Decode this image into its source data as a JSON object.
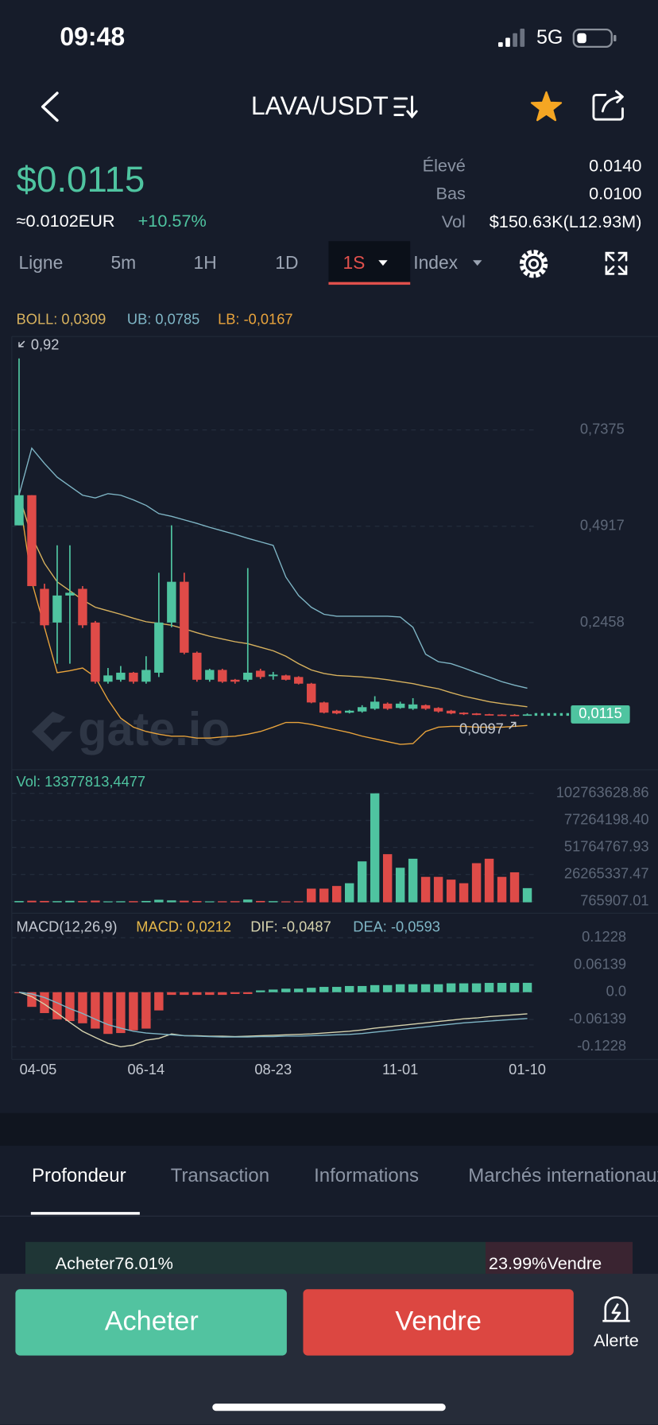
{
  "status_bar": {
    "time": "09:48",
    "network": "5G"
  },
  "header": {
    "pair": "LAVA/USDT"
  },
  "ticker": {
    "price": "$0.0115",
    "fiat": "≈0.0102EUR",
    "change": "+10.57%",
    "stats": [
      {
        "label": "Élevé",
        "value": "0.0140"
      },
      {
        "label": "Bas",
        "value": "0.0100"
      },
      {
        "label": "Vol",
        "value": "$150.63K(L12.93M)"
      }
    ]
  },
  "intervals": {
    "items": [
      "Ligne",
      "5m",
      "1H",
      "1D",
      "1S",
      "Index"
    ],
    "active": 4
  },
  "watermark": "gate.io",
  "chart_data": [
    {
      "type": "candlestick",
      "categories": [
        "04-05",
        null,
        null,
        null,
        null,
        null,
        null,
        null,
        null,
        null,
        "06-14",
        null,
        null,
        null,
        null,
        null,
        null,
        null,
        null,
        null,
        "08-23",
        null,
        null,
        null,
        null,
        null,
        null,
        null,
        null,
        null,
        "11-01",
        null,
        null,
        null,
        null,
        null,
        null,
        null,
        null,
        null,
        "01-10"
      ],
      "open": [
        0.494,
        0.571,
        0.332,
        0.246,
        0.315,
        0.332,
        0.246,
        0.095,
        0.1,
        0.118,
        0.095,
        0.118,
        0.246,
        0.35,
        0.169,
        0.1,
        0.125,
        0.1,
        0.1,
        0.123,
        0.109,
        0.111,
        0.107,
        0.09,
        0.042,
        0.021,
        0.016,
        0.019,
        0.026,
        0.039,
        0.028,
        0.026,
        0.035,
        0.028,
        0.021,
        0.016,
        0.014,
        0.012,
        0.011,
        0.0105,
        0.0104
      ],
      "high": [
        0.92,
        0.571,
        0.345,
        0.443,
        0.443,
        0.339,
        0.25,
        0.13,
        0.135,
        0.12,
        0.16,
        0.373,
        0.494,
        0.373,
        0.172,
        0.128,
        0.128,
        0.102,
        0.385,
        0.128,
        0.12,
        0.113,
        0.109,
        0.092,
        0.044,
        0.023,
        0.023,
        0.035,
        0.058,
        0.042,
        0.044,
        0.053,
        0.037,
        0.03,
        0.023,
        0.017,
        0.015,
        0.013,
        0.012,
        0.0125,
        0.014
      ],
      "low": [
        0.494,
        0.339,
        0.232,
        0.141,
        0.141,
        0.232,
        0.09,
        0.09,
        0.095,
        0.09,
        0.09,
        0.107,
        0.234,
        0.165,
        0.095,
        0.095,
        0.092,
        0.09,
        0.095,
        0.102,
        0.1,
        0.098,
        0.088,
        0.04,
        0.014,
        0.012,
        0.014,
        0.016,
        0.023,
        0.023,
        0.026,
        0.023,
        0.023,
        0.016,
        0.012,
        0.01,
        0.0097,
        0.0097,
        0.0097,
        0.0097,
        0.01
      ],
      "close": [
        0.571,
        0.339,
        0.239,
        0.315,
        0.322,
        0.239,
        0.095,
        0.111,
        0.118,
        0.095,
        0.125,
        0.246,
        0.35,
        0.169,
        0.1,
        0.125,
        0.095,
        0.095,
        0.118,
        0.107,
        0.113,
        0.1,
        0.09,
        0.042,
        0.016,
        0.014,
        0.021,
        0.03,
        0.044,
        0.026,
        0.039,
        0.037,
        0.026,
        0.019,
        0.014,
        0.012,
        0.01,
        0.01,
        0.0098,
        0.0104,
        0.0115
      ],
      "up_color": "#4fc4a0",
      "down_color": "#df4b48",
      "series": [
        {
          "name": "BOLL: 0,0309",
          "color": "#d8b25e",
          "values": [
            0.571,
            0.466,
            0.397,
            0.35,
            0.327,
            0.304,
            0.285,
            0.276,
            0.267,
            0.257,
            0.248,
            0.244,
            0.239,
            0.23,
            0.22,
            0.211,
            0.204,
            0.197,
            0.192,
            0.183,
            0.174,
            0.16,
            0.141,
            0.125,
            0.116,
            0.111,
            0.109,
            0.107,
            0.104,
            0.1,
            0.095,
            0.09,
            0.083,
            0.077,
            0.067,
            0.058,
            0.051,
            0.044,
            0.039,
            0.035,
            0.0309
          ]
        },
        {
          "name": "UB: 0,0785",
          "color": "#7fb6c6",
          "values": [
            0.571,
            0.691,
            0.652,
            0.617,
            0.594,
            0.571,
            0.564,
            0.575,
            0.571,
            0.559,
            0.545,
            0.524,
            0.517,
            0.508,
            0.499,
            0.489,
            0.48,
            0.471,
            0.461,
            0.452,
            0.443,
            0.362,
            0.315,
            0.285,
            0.267,
            0.262,
            0.262,
            0.262,
            0.262,
            0.262,
            0.26,
            0.234,
            0.165,
            0.146,
            0.141,
            0.13,
            0.118,
            0.107,
            0.095,
            0.086,
            0.0785
          ]
        },
        {
          "name": "LB: -0,0167",
          "color": "#e8a33c",
          "values": [
            0.571,
            0.35,
            0.234,
            0.118,
            0.123,
            0.13,
            0.107,
            0.049,
            0.002,
            -0.021,
            -0.032,
            -0.039,
            -0.044,
            -0.044,
            -0.049,
            -0.049,
            -0.046,
            -0.044,
            -0.039,
            -0.032,
            -0.021,
            -0.009,
            -0.009,
            -0.014,
            -0.021,
            -0.028,
            -0.035,
            -0.044,
            -0.051,
            -0.058,
            -0.065,
            -0.063,
            -0.032,
            -0.021,
            -0.019,
            -0.019,
            -0.021,
            -0.021,
            -0.021,
            -0.019,
            -0.0167
          ]
        }
      ],
      "ylim": [
        -0.125,
        0.976
      ],
      "yticks": [
        {
          "value": 0.2458,
          "label": "0,2458"
        },
        {
          "value": 0.4917,
          "label": "0,4917"
        },
        {
          "value": 0.7375,
          "label": "0,7375"
        }
      ],
      "grid": true,
      "annotations": {
        "max": {
          "value": 0.92,
          "label": "0,92"
        },
        "min": {
          "value": 0.0097,
          "label": "0,0097"
        },
        "last": {
          "value": 0.0115,
          "label": "0,0115"
        }
      }
    },
    {
      "type": "bar",
      "title": "Vol: 13377813,4477",
      "values": [
        1200000,
        1500000,
        1300000,
        1100000,
        1400000,
        1200000,
        1600000,
        900000,
        1000000,
        1100000,
        1300000,
        2400000,
        1800000,
        1500000,
        1200000,
        900000,
        1000000,
        1100000,
        2600000,
        1300000,
        1100000,
        900000,
        1000000,
        12900000,
        12900000,
        15400000,
        18000000,
        38600000,
        102763628.86,
        45400000,
        32600000,
        41100000,
        24000000,
        24000000,
        21400000,
        18000000,
        36900000,
        41100000,
        24000000,
        28300000,
        13377813.4477
      ],
      "ylim": [
        0,
        106200000
      ],
      "yticks": [
        765907.01,
        26265337.47,
        51764767.93,
        {
          "value": 77264198.4,
          "label": "77264198.40"
        },
        102763628.86
      ],
      "grid": true
    },
    {
      "type": "macd",
      "title": "MACD(12,26,9)",
      "series": [
        {
          "name": "MACD: 0,0212",
          "color": "#e6b84a",
          "values": [
            -0.002,
            -0.033,
            -0.047,
            -0.061,
            -0.065,
            -0.07,
            -0.082,
            -0.094,
            -0.092,
            -0.086,
            -0.082,
            -0.041,
            -0.006,
            -0.006,
            -0.006,
            -0.006,
            -0.006,
            -0.004,
            -0.004,
            0.004,
            0.006,
            0.008,
            0.008,
            0.01,
            0.012,
            0.012,
            0.014,
            0.014,
            0.016,
            0.016,
            0.018,
            0.018,
            0.018,
            0.018,
            0.02,
            0.02,
            0.02,
            0.021,
            0.021,
            0.021,
            0.0212
          ]
        },
        {
          "name": "DIF: -0,0487",
          "color": "#d6d3ae",
          "values": [
            0,
            -0.01,
            -0.027,
            -0.047,
            -0.068,
            -0.088,
            -0.102,
            -0.115,
            -0.123,
            -0.119,
            -0.108,
            -0.104,
            -0.094,
            -0.098,
            -0.098,
            -0.099,
            -0.099,
            -0.1,
            -0.099,
            -0.098,
            -0.097,
            -0.096,
            -0.095,
            -0.094,
            -0.092,
            -0.09,
            -0.088,
            -0.085,
            -0.081,
            -0.078,
            -0.075,
            -0.072,
            -0.069,
            -0.066,
            -0.063,
            -0.06,
            -0.058,
            -0.055,
            -0.053,
            -0.051,
            -0.0487
          ]
        },
        {
          "name": "DEA: -0,0593",
          "color": "#7fb6c6",
          "values": [
            0,
            -0.004,
            -0.012,
            -0.024,
            -0.037,
            -0.048,
            -0.061,
            -0.073,
            -0.081,
            -0.088,
            -0.092,
            -0.094,
            -0.096,
            -0.098,
            -0.099,
            -0.1,
            -0.101,
            -0.101,
            -0.101,
            -0.1,
            -0.1,
            -0.099,
            -0.099,
            -0.098,
            -0.097,
            -0.096,
            -0.095,
            -0.093,
            -0.09,
            -0.087,
            -0.084,
            -0.081,
            -0.078,
            -0.075,
            -0.072,
            -0.069,
            -0.067,
            -0.065,
            -0.063,
            -0.061,
            -0.0593
          ]
        }
      ],
      "ylim": [
        -0.1494,
        0.1678
      ],
      "yticks": [
        -0.1228,
        -0.06139,
        {
          "value": 0,
          "label": "0.0"
        },
        0.06139,
        0.1228
      ],
      "grid": true
    }
  ],
  "sections": [
    "Profondeur",
    "Transaction",
    "Informations",
    "Marchés internationaux"
  ],
  "depth": {
    "buy": "Acheter76.01%",
    "sell": "23.99%Vendre"
  },
  "actions": {
    "buy": "Acheter",
    "sell": "Vendre",
    "alert": "Alerte"
  }
}
